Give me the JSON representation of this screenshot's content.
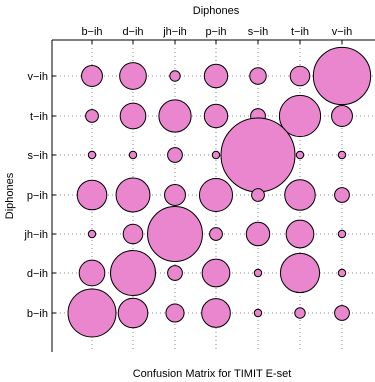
{
  "chart_data": {
    "type": "heatmap",
    "top_title": "Diphones",
    "bottom_title": "Confusion Matrix for TIMIT E-set",
    "ylabel": "Diphones",
    "x_categories": [
      "b−ih",
      "d−ih",
      "jh−ih",
      "p−ih",
      "s−ih",
      "t−ih",
      "v−ih"
    ],
    "y_categories": [
      "v−ih",
      "t−ih",
      "s−ih",
      "p−ih",
      "jh−ih",
      "d−ih",
      "b−ih"
    ],
    "grid": "dotted",
    "marker_color": "#e986cd",
    "matrix": [
      [
        8,
        13,
        2,
        10,
        5,
        7,
        60
      ],
      [
        3,
        12,
        19,
        10,
        4,
        31,
        8
      ],
      [
        1,
        1,
        4,
        1,
        100,
        1,
        1
      ],
      [
        16,
        21,
        8,
        20,
        3,
        17,
        4
      ],
      [
        1,
        7,
        55,
        3,
        10,
        14,
        1
      ],
      [
        12,
        37,
        4,
        14,
        1,
        28,
        1
      ],
      [
        42,
        16,
        6,
        15,
        1,
        2,
        4
      ]
    ]
  }
}
